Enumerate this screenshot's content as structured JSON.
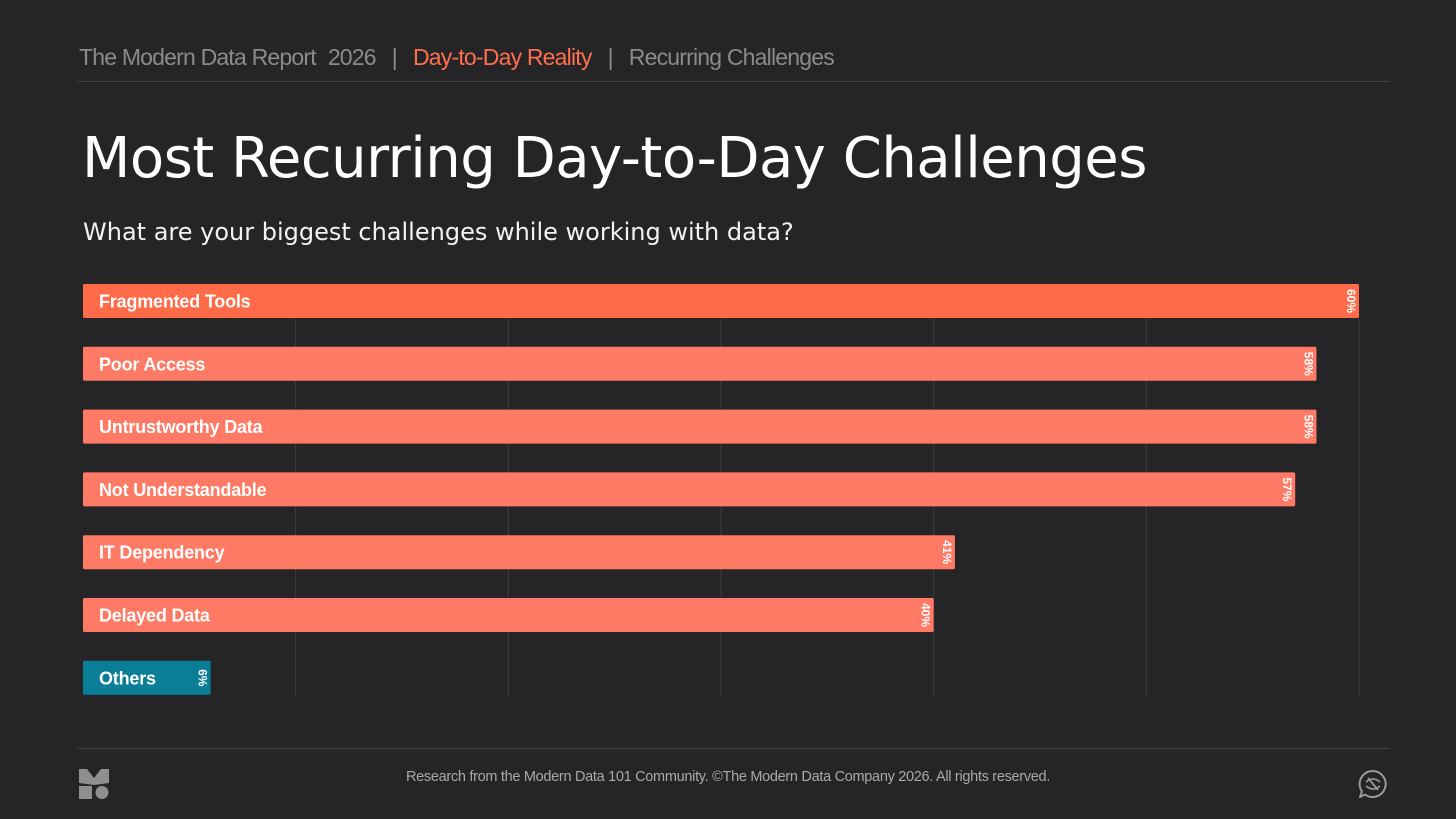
{
  "header": {
    "report": "The Modern Data Report",
    "year": "2026",
    "separator": "|",
    "section": "Day-to-Day Reality",
    "subsection": "Recurring Challenges"
  },
  "footer": {
    "text": "Research from the Modern Data 101 Community. ©The Modern Data Company 2026. All rights reserved."
  },
  "colors": {
    "accent": "#ff6f4d",
    "bar_top": "#ff6a48",
    "bar": "#ff7a64",
    "bar_other": "#0a7e96",
    "grid": "#3e3d3f"
  },
  "icons": [
    "logo-icon",
    "chat-icon"
  ],
  "chart_data": {
    "type": "bar",
    "orientation": "horizontal",
    "title": "Most Recurring Day-to-Day Challenges",
    "subtitle": "What are your biggest challenges while working with data?",
    "categories": [
      "Fragmented Tools",
      "Poor Access",
      "Untrustworthy Data",
      "Not Understandable",
      "IT Dependency",
      "Delayed Data",
      "Others"
    ],
    "values": [
      60,
      58,
      58,
      57,
      41,
      40,
      6
    ],
    "value_labels": [
      "60%",
      "58%",
      "58%",
      "57%",
      "41%",
      "40%",
      "6%"
    ],
    "unit": "%",
    "xlim": [
      0,
      60
    ],
    "grid": true,
    "legend": "none"
  }
}
